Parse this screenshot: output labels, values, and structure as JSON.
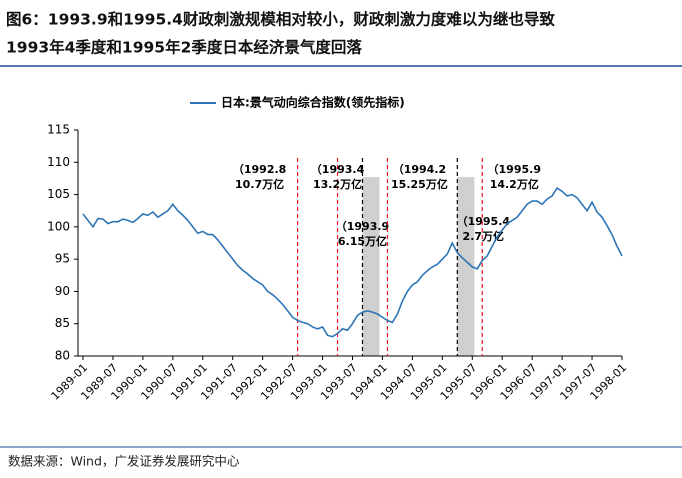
{
  "chart_data": {
    "type": "line",
    "title": [
      "图6：1993.9和1995.4财政刺激规模相对较小，财政刺激力度难以为继也导致",
      "1993年4季度和1995年2季度日本经济景气度回落"
    ],
    "source": "数据来源：Wind，广发证券发展研究中心",
    "categories": [
      "1989-01",
      null,
      null,
      null,
      null,
      null,
      "1989-07",
      null,
      null,
      null,
      null,
      null,
      "1990-01",
      null,
      null,
      null,
      null,
      null,
      "1990-07",
      null,
      null,
      null,
      null,
      null,
      "1991-01",
      null,
      null,
      null,
      null,
      null,
      "1991-07",
      null,
      null,
      null,
      null,
      null,
      "1992-01",
      null,
      null,
      null,
      null,
      null,
      "1992-07",
      null,
      null,
      null,
      null,
      null,
      "1993-01",
      null,
      null,
      null,
      null,
      null,
      "1993-07",
      null,
      null,
      null,
      null,
      null,
      "1994-01",
      null,
      null,
      null,
      null,
      null,
      "1994-07",
      null,
      null,
      null,
      null,
      null,
      "1995-01",
      null,
      null,
      null,
      null,
      null,
      "1995-07",
      null,
      null,
      null,
      null,
      null,
      "1996-01",
      null,
      null,
      null,
      null,
      null,
      "1996-07",
      null,
      null,
      null,
      null,
      null,
      "1997-01",
      null,
      null,
      null,
      null,
      null,
      "1997-07",
      null,
      null,
      null,
      null,
      null,
      "1998-01"
    ],
    "series": [
      {
        "name": "日本:景气动向综合指数(领先指标)",
        "color": "#2e75b6",
        "values": [
          102,
          101,
          100,
          101.3,
          101.2,
          100.5,
          100.8,
          100.8,
          101.2,
          101,
          100.7,
          101.3,
          102,
          101.8,
          102.3,
          101.5,
          102,
          102.5,
          103.5,
          102.5,
          101.8,
          101,
          100,
          99,
          99.3,
          98.8,
          98.8,
          98,
          97,
          96,
          95,
          94,
          93.3,
          92.7,
          92,
          91.5,
          91,
          90,
          89.5,
          88.8,
          88,
          87,
          86,
          85.5,
          85.2,
          85,
          84.5,
          84.2,
          84.5,
          83.2,
          83,
          83.5,
          84.2,
          84,
          85,
          86.3,
          86.8,
          87,
          86.8,
          86.5,
          86,
          85.5,
          85.2,
          86.5,
          88.5,
          90,
          91,
          91.5,
          92.5,
          93.2,
          93.8,
          94.2,
          95,
          95.8,
          97.5,
          96,
          95.2,
          94.5,
          93.8,
          93.5,
          94.8,
          95.5,
          97,
          98.5,
          99.5,
          100.5,
          101,
          101.5,
          102.5,
          103.5,
          104,
          104,
          103.5,
          104.3,
          104.8,
          106,
          105.5,
          104.8,
          105,
          104.5,
          103.5,
          102.5,
          103.8,
          102.3,
          101.5,
          100.2,
          98.8,
          97,
          95.5
        ]
      }
    ],
    "ylim": [
      80,
      115
    ],
    "yticks": [
      80,
      85,
      90,
      95,
      100,
      105,
      110,
      115
    ],
    "annotations": [
      {
        "date": "（1992.8",
        "amount": "10.7万亿",
        "color": "#e8161b"
      },
      {
        "date": "（1993.4",
        "amount": "13.2万亿",
        "color": "#e8161b"
      },
      {
        "date": "（1993.9",
        "amount": "6.15万亿",
        "color": "#000000",
        "shaded": true
      },
      {
        "date": "（1994.2",
        "amount": "15.25万亿",
        "color": "#e8161b"
      },
      {
        "date": "（1995.4",
        "amount": "2.7万亿",
        "color": "#000000",
        "shaded": true
      },
      {
        "date": "（1995.9",
        "amount": "14.2万亿",
        "color": "#e8161b"
      }
    ]
  }
}
